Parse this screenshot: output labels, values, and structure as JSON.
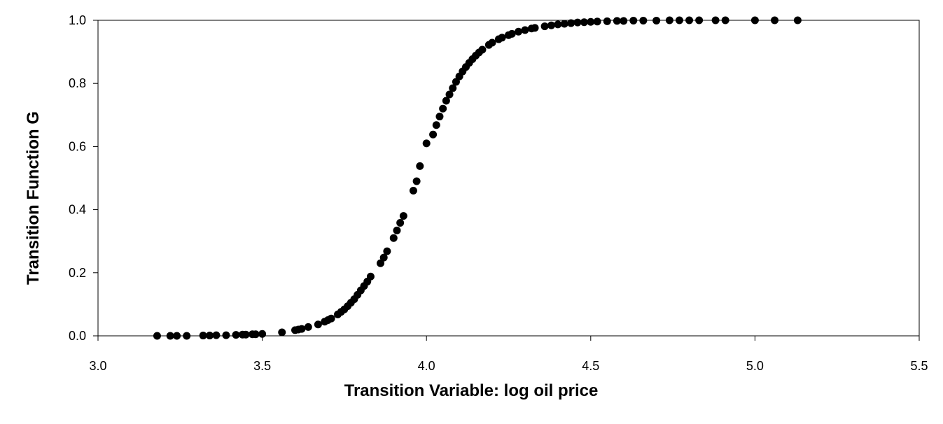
{
  "chart_data": {
    "type": "scatter",
    "title": "",
    "xlabel": "Transition Variable: log oil price",
    "ylabel": "Transition Function G",
    "xlim": [
      3.0,
      5.5
    ],
    "ylim": [
      0.0,
      1.0
    ],
    "x_ticks": [
      "3.0",
      "3.5",
      "4.0",
      "4.5",
      "5.0",
      "5.5"
    ],
    "y_ticks": [
      "0.0",
      "0.2",
      "0.4",
      "0.6",
      "0.8",
      "1.0"
    ],
    "x_tick_values": [
      3.0,
      3.5,
      4.0,
      4.5,
      5.0,
      5.5
    ],
    "y_tick_values": [
      0.0,
      0.2,
      0.4,
      0.6,
      0.8,
      1.0
    ],
    "grid": false,
    "legend": "none",
    "marker_color": "#000000",
    "series": [
      {
        "x": [
          3.18,
          3.22,
          3.24,
          3.27,
          3.32,
          3.34,
          3.36,
          3.39,
          3.42,
          3.44,
          3.45,
          3.47,
          3.48,
          3.5,
          3.56,
          3.6,
          3.61,
          3.62,
          3.64,
          3.67,
          3.69,
          3.7,
          3.71,
          3.73,
          3.74,
          3.75,
          3.76,
          3.77,
          3.78,
          3.79,
          3.8,
          3.81,
          3.82,
          3.83,
          3.86,
          3.87,
          3.88,
          3.9,
          3.91,
          3.92,
          3.93,
          3.96,
          3.97,
          3.98,
          4.0,
          4.02,
          4.03,
          4.04,
          4.05,
          4.06,
          4.07,
          4.08,
          4.09,
          4.1,
          4.11,
          4.12,
          4.13,
          4.14,
          4.15,
          4.16,
          4.17,
          4.19,
          4.2,
          4.22,
          4.23,
          4.25,
          4.26,
          4.28,
          4.3,
          4.32,
          4.33,
          4.36,
          4.38,
          4.4,
          4.42,
          4.44,
          4.46,
          4.48,
          4.5,
          4.52,
          4.55,
          4.58,
          4.6,
          4.63,
          4.66,
          4.7,
          4.74,
          4.77,
          4.8,
          4.83,
          4.88,
          4.91,
          5.0,
          5.06,
          5.13
        ],
        "y": [
          0.0,
          0.0,
          0.0,
          0.0,
          0.001,
          0.001,
          0.002,
          0.002,
          0.003,
          0.004,
          0.004,
          0.005,
          0.005,
          0.006,
          0.011,
          0.018,
          0.02,
          0.022,
          0.028,
          0.036,
          0.045,
          0.05,
          0.055,
          0.068,
          0.076,
          0.084,
          0.094,
          0.105,
          0.116,
          0.13,
          0.144,
          0.158,
          0.172,
          0.188,
          0.23,
          0.248,
          0.268,
          0.31,
          0.334,
          0.358,
          0.38,
          0.46,
          0.49,
          0.538,
          0.61,
          0.638,
          0.668,
          0.695,
          0.72,
          0.745,
          0.765,
          0.785,
          0.805,
          0.822,
          0.838,
          0.852,
          0.865,
          0.877,
          0.888,
          0.898,
          0.907,
          0.922,
          0.929,
          0.94,
          0.945,
          0.953,
          0.957,
          0.964,
          0.969,
          0.974,
          0.976,
          0.981,
          0.984,
          0.987,
          0.989,
          0.991,
          0.993,
          0.994,
          0.995,
          0.996,
          0.997,
          0.998,
          0.998,
          0.999,
          0.999,
          0.999,
          1.0,
          1.0,
          1.0,
          1.0,
          1.0,
          1.0,
          1.0,
          1.0,
          1.0
        ]
      }
    ]
  }
}
